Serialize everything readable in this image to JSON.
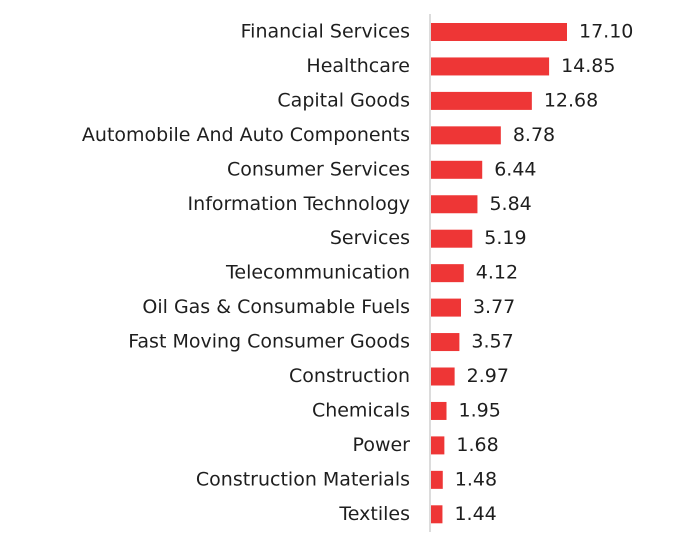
{
  "chart_data": {
    "type": "bar",
    "orientation": "horizontal",
    "categories": [
      "Financial Services",
      "Healthcare",
      "Capital Goods",
      "Automobile And Auto Components",
      "Consumer Services",
      "Information Technology",
      "Services",
      "Telecommunication",
      "Oil Gas & Consumable Fuels",
      "Fast Moving Consumer Goods",
      "Construction",
      "Chemicals",
      "Power",
      "Construction Materials",
      "Textiles"
    ],
    "values": [
      17.1,
      14.85,
      12.68,
      8.78,
      6.44,
      5.84,
      5.19,
      4.12,
      3.77,
      3.57,
      2.97,
      1.95,
      1.68,
      1.48,
      1.44
    ],
    "value_labels": [
      "17.10",
      "14.85",
      "12.68",
      "8.78",
      "6.44",
      "5.84",
      "5.19",
      "4.12",
      "3.77",
      "3.57",
      "2.97",
      "1.95",
      "1.68",
      "1.48",
      "1.44"
    ],
    "color": "#ee3636"
  }
}
